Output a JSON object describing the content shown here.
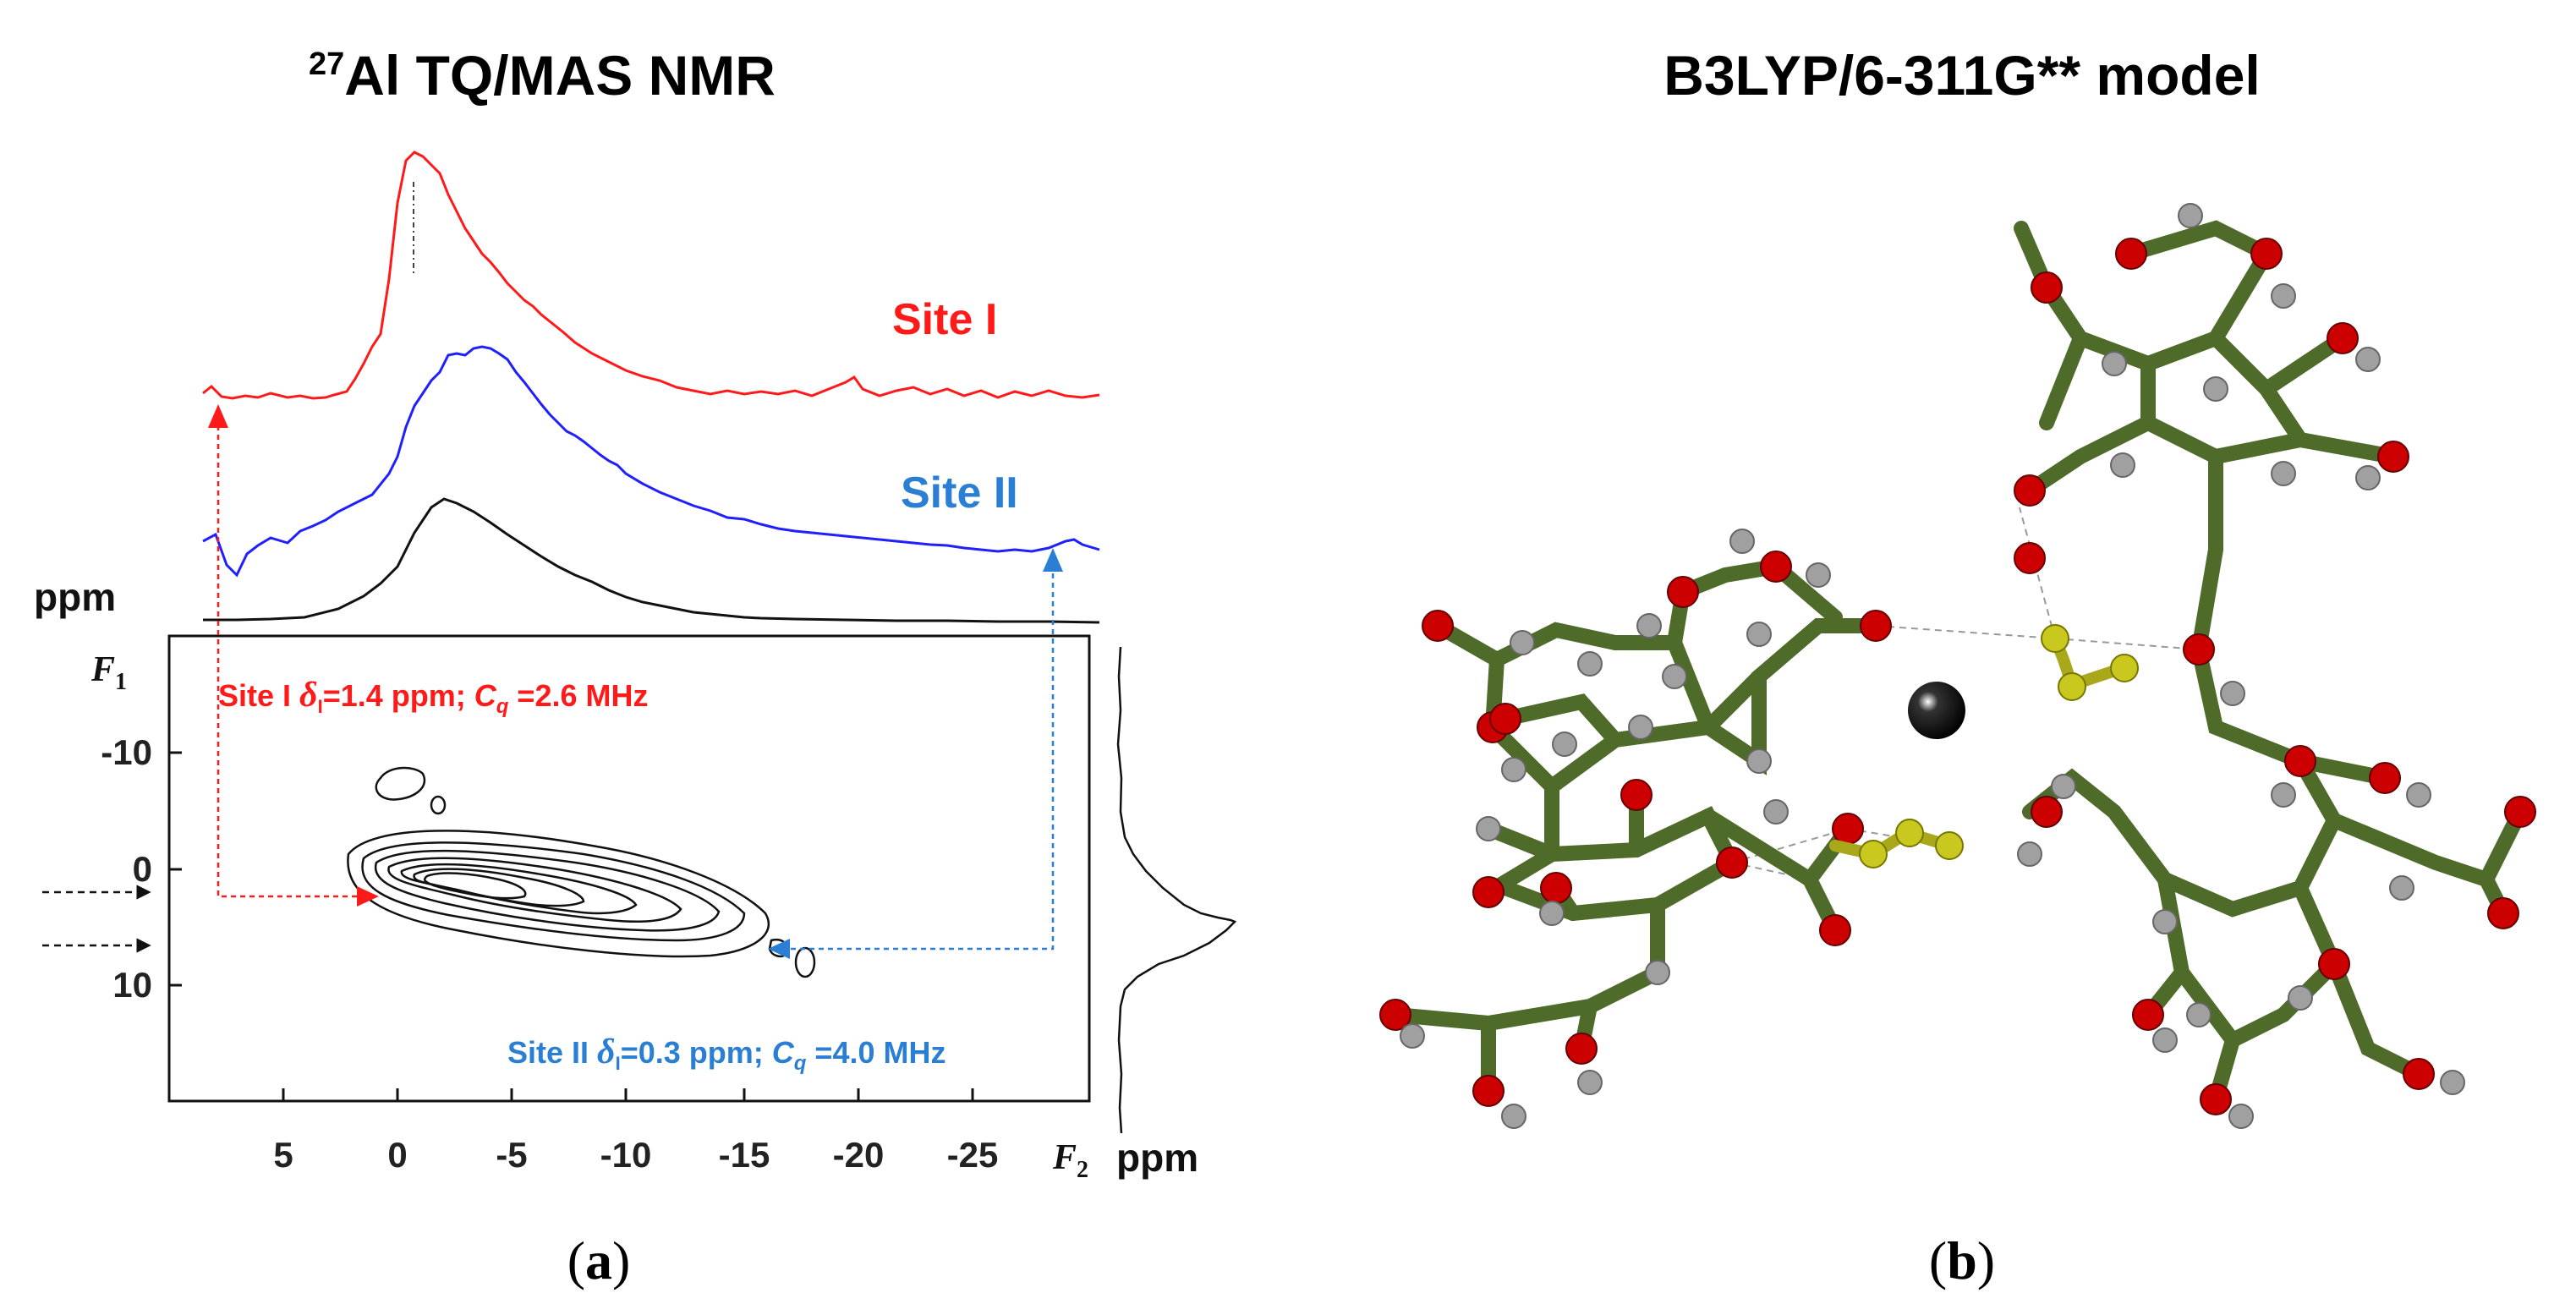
{
  "panel_a": {
    "title_sup": "27",
    "title_main": "Al TQ/MAS NMR",
    "caption_open": "(",
    "caption_letter": "a",
    "caption_close": ")",
    "site1_label": "Site I",
    "site2_label": "Site II",
    "ppm_label_top": "ppm",
    "f1_label": "F",
    "f1_sub": "1",
    "f2_label": "F",
    "f2_sub": "2",
    "ppm_label_bottom": "ppm",
    "site1_info": {
      "name": "Site I",
      "delta_symbol": "δ",
      "delta_sub": "I",
      "delta_value": "=1.4 ppm; ",
      "cq_symbol": "C",
      "cq_sub": "q",
      "cq_value": " =2.6 MHz"
    },
    "site2_info": {
      "name": "Site II",
      "delta_symbol": "δ",
      "delta_sub": "I",
      "delta_value": "=0.3 ppm; ",
      "cq_symbol": "C",
      "cq_sub": "q",
      "cq_value": " =4.0 MHz"
    },
    "x_tick_labels": [
      "5",
      "0",
      "-5",
      "-10",
      "-15",
      "-20",
      "-25"
    ],
    "y_tick_labels": [
      "-10",
      "0",
      "10"
    ],
    "colors": {
      "site1": "#ff1a1a",
      "site2": "#2a7fd4",
      "sum": "#111111",
      "blue_trace": "#1f1fff"
    }
  },
  "panel_b": {
    "title": "B3LYP/6-311G** model",
    "caption_open": "(",
    "caption_letter": "b",
    "caption_close": ")",
    "colors": {
      "carbon": "#4f6b2a",
      "oxygen": "#cc0000",
      "hydrogen": "#9a9a9a",
      "sulfur": "#c8c81e",
      "aluminum": "#000000"
    }
  }
}
